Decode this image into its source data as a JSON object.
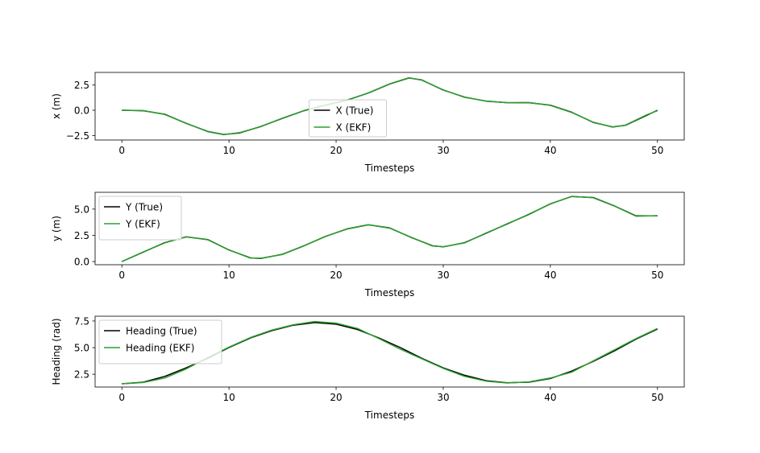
{
  "chart_data": [
    {
      "type": "line",
      "xlabel": "Timesteps",
      "ylabel": "x (m)",
      "xlim": [
        -2.5,
        52.5
      ],
      "ylim": [
        -2.95,
        3.75
      ],
      "xticks": [
        0,
        10,
        20,
        30,
        40,
        50
      ],
      "yticks": [
        -2.5,
        0.0,
        2.5
      ],
      "ytick_labels": [
        "−2.5",
        "0.0",
        "2.5"
      ],
      "legend_position": "lower center",
      "series": [
        {
          "name": "X (True)",
          "color": "#000000",
          "x": [
            0,
            2,
            4,
            6,
            8,
            9.5,
            11,
            13,
            15,
            17,
            19,
            21,
            23,
            25,
            26.8,
            28,
            30,
            32,
            34,
            36,
            38,
            40,
            42,
            44,
            45.8,
            47,
            49,
            50
          ],
          "y": [
            0.0,
            -0.05,
            -0.4,
            -1.3,
            -2.1,
            -2.4,
            -2.25,
            -1.6,
            -0.8,
            -0.05,
            0.5,
            1.0,
            1.7,
            2.6,
            3.2,
            3.0,
            2.0,
            1.3,
            0.9,
            0.75,
            0.75,
            0.5,
            -0.2,
            -1.2,
            -1.65,
            -1.5,
            -0.5,
            0.0
          ]
        },
        {
          "name": "X (EKF)",
          "color": "#2ca02c",
          "x": [
            0,
            2,
            4,
            6,
            8,
            9.5,
            11,
            13,
            15,
            17,
            19,
            21,
            23,
            25,
            26.8,
            28,
            30,
            32,
            34,
            36,
            38,
            40,
            42,
            44,
            45.8,
            47,
            49,
            50
          ],
          "y": [
            0.0,
            -0.03,
            -0.42,
            -1.28,
            -2.12,
            -2.42,
            -2.22,
            -1.62,
            -0.78,
            -0.03,
            0.52,
            0.98,
            1.72,
            2.62,
            3.22,
            2.98,
            2.02,
            1.28,
            0.92,
            0.74,
            0.77,
            0.48,
            -0.22,
            -1.18,
            -1.67,
            -1.48,
            -0.45,
            -0.05
          ]
        }
      ]
    },
    {
      "type": "line",
      "xlabel": "Timesteps",
      "ylabel": "y (m)",
      "xlim": [
        -2.5,
        52.5
      ],
      "ylim": [
        -0.3,
        6.6
      ],
      "xticks": [
        0,
        10,
        20,
        30,
        40,
        50
      ],
      "yticks": [
        0.0,
        2.5,
        5.0
      ],
      "ytick_labels": [
        "0.0",
        "2.5",
        "5.0"
      ],
      "legend_position": "upper left",
      "series": [
        {
          "name": "Y (True)",
          "color": "#000000",
          "x": [
            0,
            2,
            4,
            6,
            8,
            10,
            12,
            13,
            15,
            17,
            19,
            21,
            23,
            25,
            27,
            29,
            30,
            32,
            34,
            36,
            38,
            40,
            42,
            44,
            46,
            48,
            50
          ],
          "y": [
            0.0,
            0.9,
            1.8,
            2.35,
            2.1,
            1.1,
            0.35,
            0.3,
            0.7,
            1.5,
            2.4,
            3.1,
            3.5,
            3.2,
            2.3,
            1.5,
            1.4,
            1.8,
            2.7,
            3.6,
            4.5,
            5.5,
            6.2,
            6.1,
            5.3,
            4.35,
            4.35
          ]
        },
        {
          "name": "Y (EKF)",
          "color": "#2ca02c",
          "x": [
            0,
            2,
            4,
            6,
            8,
            10,
            12,
            13,
            15,
            17,
            19,
            21,
            23,
            25,
            27,
            29,
            30,
            32,
            34,
            36,
            38,
            40,
            42,
            44,
            46,
            48,
            50
          ],
          "y": [
            0.0,
            0.92,
            1.78,
            2.37,
            2.08,
            1.12,
            0.33,
            0.32,
            0.68,
            1.52,
            2.38,
            3.12,
            3.52,
            3.18,
            2.32,
            1.48,
            1.42,
            1.78,
            2.72,
            3.58,
            4.52,
            5.48,
            6.22,
            6.08,
            5.28,
            4.32,
            4.38
          ]
        }
      ]
    },
    {
      "type": "line",
      "xlabel": "Timesteps",
      "ylabel": "Heading (rad)",
      "xlim": [
        -2.5,
        52.5
      ],
      "ylim": [
        1.3,
        7.95
      ],
      "xticks": [
        0,
        10,
        20,
        30,
        40,
        50
      ],
      "yticks": [
        2.5,
        5.0,
        7.5
      ],
      "ytick_labels": [
        "2.5",
        "5.0",
        "7.5"
      ],
      "legend_position": "upper left",
      "series": [
        {
          "name": "Heading (True)",
          "color": "#000000",
          "x": [
            0,
            2,
            4,
            6,
            8,
            10,
            12,
            14,
            16,
            18,
            20,
            22,
            24,
            26,
            28,
            30,
            32,
            34,
            36,
            38,
            40,
            42,
            44,
            46,
            48,
            50
          ],
          "y": [
            1.6,
            1.75,
            2.3,
            3.1,
            4.0,
            5.0,
            5.9,
            6.6,
            7.1,
            7.35,
            7.2,
            6.7,
            5.9,
            5.0,
            4.0,
            3.1,
            2.4,
            1.9,
            1.7,
            1.75,
            2.1,
            2.8,
            3.7,
            4.7,
            5.8,
            6.75
          ]
        },
        {
          "name": "Heading (EKF)",
          "color": "#2ca02c",
          "x": [
            0,
            2,
            4,
            6,
            8,
            10,
            12,
            14,
            16,
            18,
            20,
            22,
            24,
            26,
            28,
            30,
            32,
            34,
            36,
            38,
            40,
            42,
            44,
            46,
            48,
            50
          ],
          "y": [
            1.6,
            1.72,
            2.15,
            3.0,
            4.05,
            5.05,
            5.95,
            6.65,
            7.15,
            7.45,
            7.3,
            6.8,
            5.85,
            4.85,
            3.95,
            3.05,
            2.3,
            1.85,
            1.68,
            1.78,
            2.15,
            2.7,
            3.75,
            4.8,
            5.85,
            6.8
          ]
        }
      ]
    }
  ]
}
